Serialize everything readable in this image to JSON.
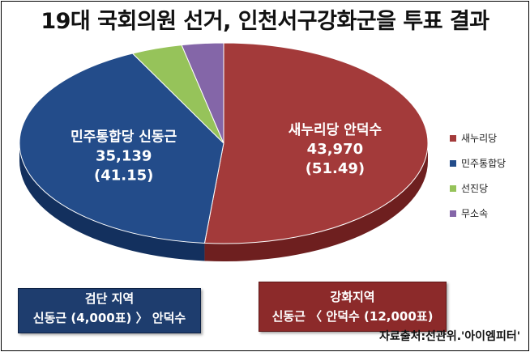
{
  "title": "19대 국회의원 선거, 인천서구강화군을 투표 결과",
  "chart_data": {
    "type": "pie",
    "style": "3d",
    "slices": [
      {
        "legend": "새누리당",
        "label": "새누리당 안덕수",
        "votes": "43,970",
        "pct": "(51.49)",
        "value": 51.49,
        "color": "#a33a3a",
        "side": "#6e1f1f"
      },
      {
        "legend": "민주통합당",
        "label": "민주통합당 신동근",
        "votes": "35,139",
        "pct": "(41.15)",
        "value": 41.15,
        "color": "#234c8a",
        "side": "#13305e"
      },
      {
        "legend": "선진당",
        "label": "",
        "votes": "",
        "pct": "",
        "value": 4.06,
        "color": "#96c35a",
        "side": "#5f8a30"
      },
      {
        "legend": "무소속",
        "label": "",
        "votes": "",
        "pct": "",
        "value": 3.3,
        "color": "#8466a8",
        "side": "#58437a"
      }
    ],
    "legend_position": "right"
  },
  "notes": {
    "left": {
      "line1": "검단 지역",
      "line2": "신동근 (4,000표) 〉 안덕수"
    },
    "right": {
      "line1": "강화지역",
      "line2": "신동근 〈 안덕수 (12,000표)"
    }
  },
  "source": "자료출처:선관위.'아이엠피터'"
}
